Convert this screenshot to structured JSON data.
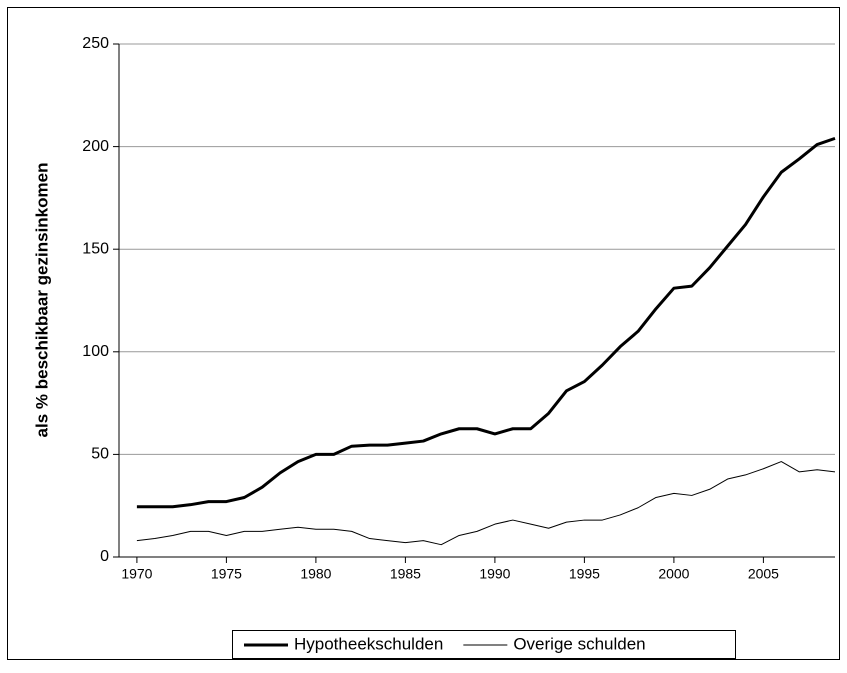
{
  "chart_data": {
    "type": "line",
    "y_label": "als % beschikbaar gezinsinkomen",
    "x": [
      1970,
      1971,
      1972,
      1973,
      1974,
      1975,
      1976,
      1977,
      1978,
      1979,
      1980,
      1981,
      1982,
      1983,
      1984,
      1985,
      1986,
      1987,
      1988,
      1989,
      1990,
      1991,
      1992,
      1993,
      1994,
      1995,
      1996,
      1997,
      1998,
      1999,
      2000,
      2001,
      2002,
      2003,
      2004,
      2005,
      2006,
      2007,
      2008,
      2009
    ],
    "series": [
      {
        "name": "Hypotheekschulden",
        "color": "#000000",
        "width": 3,
        "values": [
          24.5,
          24.5,
          24.5,
          25.5,
          27,
          27,
          29,
          34,
          41,
          46.5,
          50,
          50,
          54,
          54.5,
          54.5,
          55.5,
          56.5,
          60,
          62.5,
          62.5,
          60,
          62.5,
          62.5,
          70,
          81,
          85.5,
          93.5,
          102.5,
          110,
          121,
          131,
          132,
          141,
          151.5,
          162,
          175.5,
          187.5,
          194,
          201,
          204
        ]
      },
      {
        "name": "Overige schulden",
        "color": "#000000",
        "width": 1,
        "values": [
          8,
          9,
          10.5,
          12.5,
          12.5,
          10.5,
          12.5,
          12.5,
          13.5,
          14.5,
          13.5,
          13.5,
          12.5,
          9,
          8,
          7,
          8,
          6,
          10.5,
          12.5,
          16,
          18,
          16,
          14,
          17,
          18,
          18,
          20.5,
          24,
          29,
          31,
          30,
          33,
          38,
          40,
          43,
          46.5,
          41.5,
          42.5,
          41.5
        ]
      }
    ],
    "xlim": [
      1969,
      2009
    ],
    "xticks": [
      1970,
      1975,
      1980,
      1985,
      1990,
      1995,
      2000,
      2005
    ],
    "ylim": [
      0,
      250
    ],
    "yticks": [
      0,
      50,
      100,
      150,
      200,
      250
    ],
    "grid": true,
    "legend": "bottom"
  }
}
